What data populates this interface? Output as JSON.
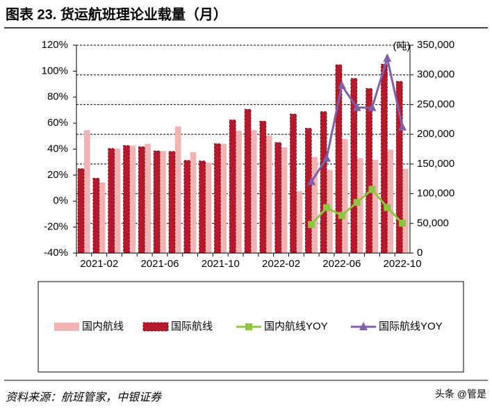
{
  "chart_data": {
    "type": "bar",
    "title": "图表 23. 货运航班理论业载量（月）",
    "y2_unit": "(吨)",
    "categories": [
      null,
      "2021-02",
      null,
      null,
      null,
      "2021-06",
      null,
      null,
      null,
      "2021-10",
      null,
      null,
      null,
      "2022-02",
      null,
      null,
      null,
      "2022-06",
      null,
      null,
      null,
      "2022-10"
    ],
    "series": [
      {
        "name": "国内航线",
        "type": "bar",
        "axis": "y2",
        "color": "#f2b3b3",
        "values": [
          207000,
          119000,
          176000,
          181000,
          184000,
          172000,
          213000,
          170000,
          152000,
          184000,
          206000,
          207000,
          198000,
          178000,
          104000,
          162000,
          140000,
          192000,
          160000,
          157000,
          174000,
          142000
        ]
      },
      {
        "name": "国际航线",
        "type": "bar",
        "axis": "y2",
        "color": "#b5192b",
        "values": [
          142000,
          126000,
          176000,
          181000,
          179000,
          172000,
          171000,
          156000,
          155000,
          184000,
          224000,
          242000,
          222000,
          186000,
          234000,
          210000,
          238000,
          317000,
          294000,
          277000,
          318000,
          289000
        ]
      },
      {
        "name": "国内航线YOY",
        "type": "line",
        "color": "#8cc63e",
        "marker": "square",
        "values": [
          null,
          null,
          null,
          null,
          null,
          null,
          null,
          null,
          null,
          null,
          null,
          null,
          null,
          null,
          null,
          -18,
          -5,
          -11,
          -1,
          9,
          -5,
          -17
        ]
      },
      {
        "name": "国际航线YOY",
        "type": "line",
        "color": "#7f5fa8",
        "marker": "triangle",
        "values": [
          null,
          null,
          null,
          null,
          null,
          null,
          null,
          null,
          null,
          null,
          null,
          null,
          null,
          null,
          null,
          15,
          33,
          89,
          72,
          72,
          110,
          57
        ]
      }
    ],
    "ylim": [
      -40,
      120
    ],
    "yticks": [
      {
        "value": -40,
        "label": "-40%"
      },
      {
        "value": -20,
        "label": "-20%"
      },
      {
        "value": 0,
        "label": "0%"
      },
      {
        "value": 20,
        "label": "20%"
      },
      {
        "value": 40,
        "label": "40%"
      },
      {
        "value": 60,
        "label": "60%"
      },
      {
        "value": 80,
        "label": "80%"
      },
      {
        "value": 100,
        "label": "100%"
      },
      {
        "value": 120,
        "label": "120%"
      }
    ],
    "y2lim": [
      0,
      350000
    ],
    "y2ticks": [
      0,
      {
        "value": 50000,
        "label": "50,000"
      },
      {
        "value": 100000,
        "label": "100,000"
      },
      {
        "value": 150000,
        "label": "150,000"
      },
      {
        "value": 200000,
        "label": "200,000"
      },
      {
        "value": 250000,
        "label": "250,000"
      },
      {
        "value": 300000,
        "label": "300,000"
      },
      {
        "value": 350000,
        "label": "350,000"
      }
    ],
    "grid": true
  },
  "source": "资料来源：航班管家，中银证券",
  "watermark": "头条 @管是"
}
